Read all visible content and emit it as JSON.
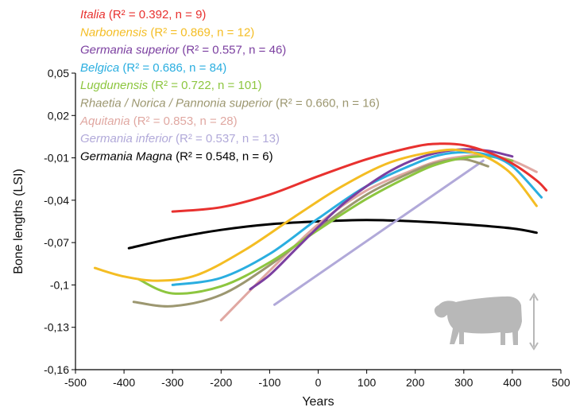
{
  "chart_data": {
    "type": "line",
    "title": "",
    "xlabel": "Years",
    "ylabel": "Bone lengths (LSI)",
    "xlim": [
      -500,
      500
    ],
    "ylim": [
      -0.16,
      0.05
    ],
    "xticks": [
      "-500",
      "-400",
      "-300",
      "-200",
      "-100",
      "0",
      "100",
      "200",
      "300",
      "400",
      "500"
    ],
    "yticks": [
      "0,05",
      "0,02",
      "-0,01",
      "-0,04",
      "-0,07",
      "-0,1",
      "-0,13",
      "-0,16"
    ],
    "grid": false,
    "legend_position": "top-left",
    "icon": "cow-silhouette-icon",
    "series": [
      {
        "name": "Italia",
        "stats": "(R² = 0.392, n = 9)",
        "color": "#e8312f",
        "x": [
          -300,
          -200,
          -100,
          0,
          100,
          200,
          250,
          300,
          350,
          400,
          450,
          470
        ],
        "y": [
          -0.048,
          -0.045,
          -0.036,
          -0.023,
          -0.011,
          -0.002,
          0.0,
          -0.001,
          -0.006,
          -0.014,
          -0.026,
          -0.033
        ]
      },
      {
        "name": "Narbonensis",
        "stats": "(R² = 0.869, n = 12)",
        "color": "#f4bd23",
        "x": [
          -460,
          -400,
          -330,
          -250,
          -150,
          -50,
          50,
          150,
          250,
          300,
          350,
          400,
          450
        ],
        "y": [
          -0.088,
          -0.094,
          -0.097,
          -0.093,
          -0.075,
          -0.052,
          -0.03,
          -0.013,
          -0.005,
          -0.005,
          -0.01,
          -0.022,
          -0.044
        ]
      },
      {
        "name": "Germania superior",
        "stats": "(R² = 0.557, n = 46)",
        "color": "#7b3fa0",
        "x": [
          -140,
          -100,
          -50,
          0,
          50,
          100,
          150,
          200,
          250,
          300,
          350,
          400
        ],
        "y": [
          -0.103,
          -0.093,
          -0.076,
          -0.059,
          -0.043,
          -0.03,
          -0.019,
          -0.011,
          -0.006,
          -0.004,
          -0.005,
          -0.009
        ]
      },
      {
        "name": "Belgica",
        "stats": "(R² = 0.686, n = 84)",
        "color": "#2aaee0",
        "x": [
          -300,
          -200,
          -100,
          0,
          100,
          200,
          250,
          300,
          350,
          400,
          460
        ],
        "y": [
          -0.1,
          -0.095,
          -0.078,
          -0.053,
          -0.03,
          -0.014,
          -0.008,
          -0.006,
          -0.008,
          -0.016,
          -0.038
        ]
      },
      {
        "name": "Lugdunensis",
        "stats": "(R² = 0.722, n = 101)",
        "color": "#8dc63f",
        "x": [
          -370,
          -300,
          -200,
          -100,
          0,
          100,
          200,
          250,
          300,
          350,
          400
        ],
        "y": [
          -0.096,
          -0.106,
          -0.101,
          -0.084,
          -0.061,
          -0.039,
          -0.021,
          -0.014,
          -0.01,
          -0.009,
          -0.012
        ]
      },
      {
        "name": "Rhaetia / Norica / Pannonia superior",
        "stats": "(R² = 0.660, n = 16)",
        "color": "#9c9770",
        "x": [
          -380,
          -300,
          -200,
          -100,
          0,
          100,
          200,
          250,
          300,
          350
        ],
        "y": [
          -0.112,
          -0.115,
          -0.107,
          -0.086,
          -0.06,
          -0.036,
          -0.019,
          -0.013,
          -0.011,
          -0.016
        ]
      },
      {
        "name": "Aquitania",
        "stats": "(R² = 0.853, n = 28)",
        "color": "#e0a8a2",
        "x": [
          -200,
          -100,
          0,
          100,
          200,
          250,
          300,
          350,
          400,
          450
        ],
        "y": [
          -0.125,
          -0.09,
          -0.057,
          -0.033,
          -0.018,
          -0.012,
          -0.009,
          -0.008,
          -0.012,
          -0.02
        ]
      },
      {
        "name": "Germania inferior",
        "stats": "(R² = 0.537, n = 13)",
        "color": "#b1a9d9",
        "x": [
          -90,
          340
        ],
        "y": [
          -0.114,
          -0.012
        ]
      },
      {
        "name": "Germania Magna",
        "stats": "(R² = 0.548, n = 6)",
        "color": "#000000",
        "x": [
          -390,
          -300,
          -200,
          -100,
          0,
          100,
          200,
          300,
          400,
          450
        ],
        "y": [
          -0.074,
          -0.067,
          -0.061,
          -0.057,
          -0.055,
          -0.054,
          -0.055,
          -0.057,
          -0.06,
          -0.063
        ]
      }
    ]
  }
}
